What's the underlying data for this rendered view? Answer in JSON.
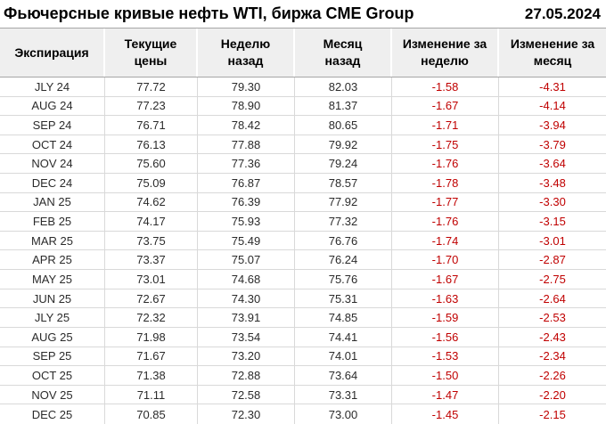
{
  "page": {
    "title": "Фьючерсные кривые нефть WTI, биржа CME Group",
    "date": "27.05.2024"
  },
  "colors": {
    "negative_value": "#c00000",
    "header_background": "#efefef",
    "header_border": "#a6a6a6",
    "grid_border": "#d9d9d9",
    "text_color": "#2b2b2b",
    "title_color": "#000000"
  },
  "chart_data": {
    "type": "table",
    "title": "Фьючерсные кривые нефть WTI, биржа CME Group",
    "date": "27.05.2024",
    "columns": [
      "Экспирация",
      "Текущие\nцены",
      "Неделю\nназад",
      "Месяц\nназад",
      "Изменение за\nнеделю",
      "Изменение за\nмесяц"
    ],
    "rows": [
      [
        "JLY 24",
        "77.72",
        "79.30",
        "82.03",
        "-1.58",
        "-4.31"
      ],
      [
        "AUG 24",
        "77.23",
        "78.90",
        "81.37",
        "-1.67",
        "-4.14"
      ],
      [
        "SEP 24",
        "76.71",
        "78.42",
        "80.65",
        "-1.71",
        "-3.94"
      ],
      [
        "OCT 24",
        "76.13",
        "77.88",
        "79.92",
        "-1.75",
        "-3.79"
      ],
      [
        "NOV 24",
        "75.60",
        "77.36",
        "79.24",
        "-1.76",
        "-3.64"
      ],
      [
        "DEC 24",
        "75.09",
        "76.87",
        "78.57",
        "-1.78",
        "-3.48"
      ],
      [
        "JAN 25",
        "74.62",
        "76.39",
        "77.92",
        "-1.77",
        "-3.30"
      ],
      [
        "FEB 25",
        "74.17",
        "75.93",
        "77.32",
        "-1.76",
        "-3.15"
      ],
      [
        "MAR 25",
        "73.75",
        "75.49",
        "76.76",
        "-1.74",
        "-3.01"
      ],
      [
        "APR 25",
        "73.37",
        "75.07",
        "76.24",
        "-1.70",
        "-2.87"
      ],
      [
        "MAY 25",
        "73.01",
        "74.68",
        "75.76",
        "-1.67",
        "-2.75"
      ],
      [
        "JUN 25",
        "72.67",
        "74.30",
        "75.31",
        "-1.63",
        "-2.64"
      ],
      [
        "JLY 25",
        "72.32",
        "73.91",
        "74.85",
        "-1.59",
        "-2.53"
      ],
      [
        "AUG 25",
        "71.98",
        "73.54",
        "74.41",
        "-1.56",
        "-2.43"
      ],
      [
        "SEP 25",
        "71.67",
        "73.20",
        "74.01",
        "-1.53",
        "-2.34"
      ],
      [
        "OCT 25",
        "71.38",
        "72.88",
        "73.64",
        "-1.50",
        "-2.26"
      ],
      [
        "NOV 25",
        "71.11",
        "72.58",
        "73.31",
        "-1.47",
        "-2.20"
      ],
      [
        "DEC 25",
        "70.85",
        "72.30",
        "73.00",
        "-1.45",
        "-2.15"
      ]
    ]
  }
}
